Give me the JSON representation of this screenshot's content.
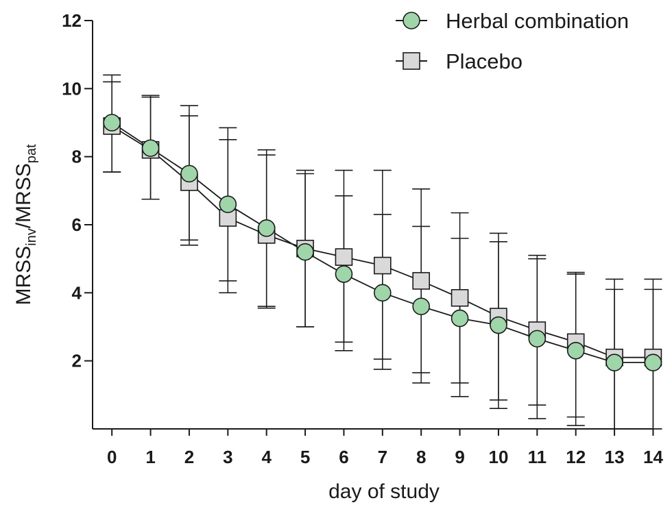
{
  "chart_data": {
    "type": "line",
    "xlabel": "day of study",
    "ylabel": {
      "main": "MRSS",
      "sub1": "inv",
      "mid": "/MRSS",
      "sub2": "pat"
    },
    "x": [
      0,
      1,
      2,
      3,
      4,
      5,
      6,
      7,
      8,
      9,
      10,
      11,
      12,
      13,
      14
    ],
    "xlim": [
      -0.5,
      14.4
    ],
    "ylim": [
      0,
      12
    ],
    "yticks": [
      2,
      4,
      6,
      8,
      10,
      12
    ],
    "grid": false,
    "legend_position": "top-right",
    "series": [
      {
        "name": "Herbal combination",
        "marker": "circle",
        "color": "#9fd6a9",
        "y": [
          9.0,
          8.25,
          7.5,
          6.6,
          5.9,
          5.2,
          4.55,
          4.0,
          3.6,
          3.25,
          3.05,
          2.65,
          2.3,
          1.95,
          1.95
        ],
        "err_upper": [
          10.2,
          9.75,
          9.2,
          8.5,
          8.05,
          7.5,
          6.85,
          6.3,
          5.95,
          5.6,
          5.5,
          5.0,
          4.55,
          4.1,
          4.1
        ],
        "err_lower": [
          7.55,
          6.75,
          5.4,
          4.35,
          3.55,
          3.0,
          2.55,
          2.05,
          1.65,
          1.35,
          0.85,
          0.7,
          0.35,
          0.0,
          0.0
        ]
      },
      {
        "name": "Placebo",
        "marker": "square",
        "color": "#d9d9d9",
        "y": [
          8.9,
          8.2,
          7.25,
          6.2,
          5.7,
          5.3,
          5.05,
          4.8,
          4.35,
          3.85,
          3.3,
          2.9,
          2.55,
          2.1,
          2.1
        ],
        "err_upper": [
          10.4,
          9.8,
          9.5,
          8.85,
          8.2,
          7.6,
          7.6,
          7.6,
          7.05,
          6.35,
          5.75,
          5.1,
          4.6,
          4.4,
          4.4
        ],
        "err_lower": [
          7.55,
          6.75,
          5.55,
          4.0,
          3.6,
          3.0,
          2.3,
          1.75,
          1.35,
          0.95,
          0.6,
          0.3,
          0.1,
          0.0,
          0.0
        ]
      }
    ]
  }
}
